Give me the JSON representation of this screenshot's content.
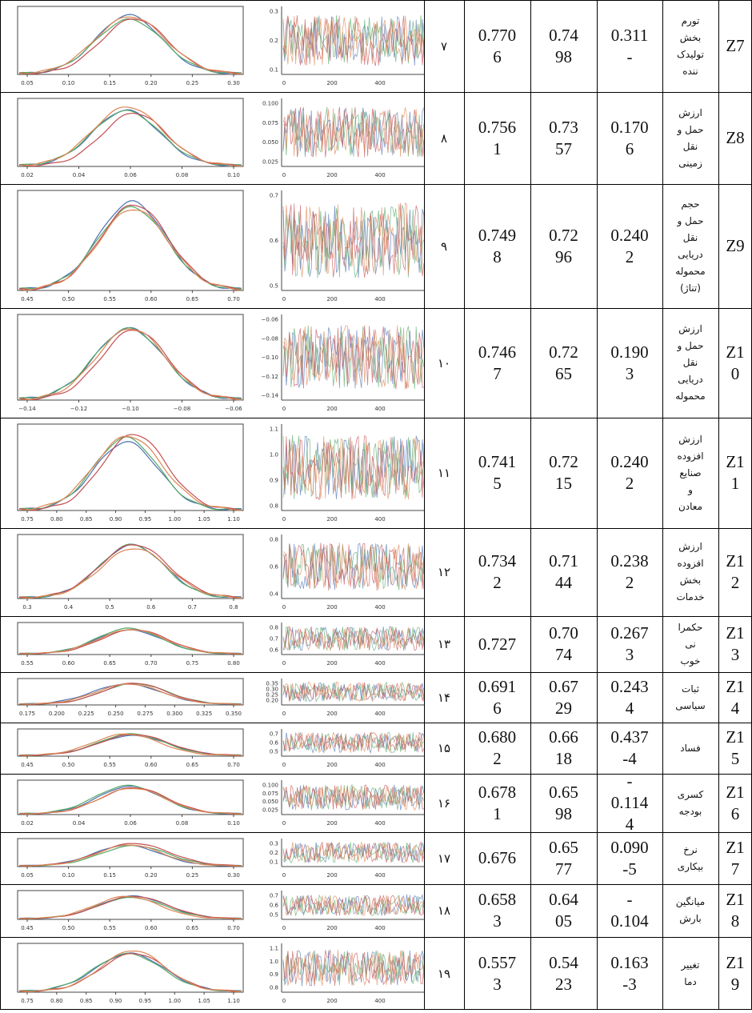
{
  "rows": [
    {
      "z": [
        "Z7"
      ],
      "label": [
        "تورم",
        "بخش",
        "تولیدک",
        "ننده"
      ],
      "c1": [
        "0.311",
        "-"
      ],
      "c2": [
        "0.74",
        "98"
      ],
      "c3": [
        "0.770",
        "6"
      ],
      "idx": "۷",
      "kde_ticks": [
        "0.05",
        "0.10",
        "0.15",
        "0.20",
        "0.25",
        "0.30"
      ],
      "trace_ticks": [
        "0.3",
        "0.2",
        "0.1"
      ],
      "trace_x": [
        "0",
        "200",
        "400",
        "600"
      ]
    },
    {
      "z": [
        "Z8"
      ],
      "label": [
        "ارزش",
        "حمل و",
        "نقل",
        "زمینی"
      ],
      "c1": [
        "0.170",
        "6"
      ],
      "c2": [
        "0.73",
        "57"
      ],
      "c3": [
        "0.756",
        "1"
      ],
      "idx": "۸",
      "kde_ticks": [
        "0.02",
        "0.04",
        "0.06",
        "0.08",
        "0.10"
      ],
      "trace_ticks": [
        "0.100",
        "0.075",
        "0.050",
        "0.025"
      ],
      "trace_x": [
        "0",
        "200",
        "400",
        "600"
      ]
    },
    {
      "z": [
        "Z9"
      ],
      "label": [
        "حجم",
        "حمل و",
        "نقل",
        "دریایی",
        "محموله",
        "(تناژ)"
      ],
      "c1": [
        "0.240",
        "2"
      ],
      "c2": [
        "0.72",
        "96"
      ],
      "c3": [
        "0.749",
        "8"
      ],
      "idx": "۹",
      "kde_ticks": [
        "0.45",
        "0.50",
        "0.55",
        "0.60",
        "0.65",
        "0.70"
      ],
      "trace_ticks": [
        "0.7",
        "0.6",
        "0.5"
      ],
      "trace_x": [
        "0",
        "200",
        "400"
      ]
    },
    {
      "z": [
        "Z1",
        "0"
      ],
      "label": [
        "ارزش",
        "حمل و",
        "نقل",
        "دریایی",
        "محموله"
      ],
      "c1": [
        "0.190",
        "3"
      ],
      "c2": [
        "0.72",
        "65"
      ],
      "c3": [
        "0.746",
        "7"
      ],
      "idx": "۱۰",
      "kde_ticks": [
        "−0.14",
        "−0.12",
        "−0.10",
        "−0.08",
        "−0.06"
      ],
      "trace_ticks": [
        "−0.06",
        "−0.08",
        "−0.10",
        "−0.12",
        "−0.14"
      ],
      "trace_x": [
        "0",
        "200",
        "400"
      ]
    },
    {
      "z": [
        "Z1",
        "1"
      ],
      "label": [
        "ارزش",
        "افزوده",
        "صنایع",
        "و",
        "معادن"
      ],
      "c1": [
        "0.240",
        "2"
      ],
      "c2": [
        "0.72",
        "15"
      ],
      "c3": [
        "0.741",
        "5"
      ],
      "idx": "۱۱",
      "kde_ticks": [
        "0.75",
        "0.80",
        "0.85",
        "0.90",
        "0.95",
        "1.00",
        "1.05",
        "1.10"
      ],
      "trace_ticks": [
        "1.1",
        "1.0",
        "0.9",
        "0.8"
      ],
      "trace_x": [
        "0",
        "200",
        "400",
        "600"
      ]
    },
    {
      "z": [
        "Z1",
        "2"
      ],
      "label": [
        "ارزش",
        "افزوده",
        "بخش",
        "خدمات"
      ],
      "c1": [
        "0.238",
        "2"
      ],
      "c2": [
        "0.71",
        "44"
      ],
      "c3": [
        "0.734",
        "2"
      ],
      "idx": "۱۲",
      "kde_ticks": [
        "0.3",
        "0.4",
        "0.5",
        "0.6",
        "0.7",
        "0.8"
      ],
      "trace_ticks": [
        "0.8",
        "0.6",
        "0.4"
      ],
      "trace_x": [
        "0",
        "200",
        "400"
      ]
    },
    {
      "z": [
        "Z1",
        "3"
      ],
      "label": [
        "حکمرا",
        "نی",
        "خوب"
      ],
      "c1": [
        "0.267",
        "3"
      ],
      "c2": [
        "0.70",
        "74"
      ],
      "c3": [
        "0.727"
      ],
      "idx": "۱۳",
      "kde_ticks": [
        "0.55",
        "0.60",
        "0.65",
        "0.70",
        "0.75",
        "0.80"
      ],
      "trace_ticks": [
        "0.8",
        "0.7",
        "0.6"
      ],
      "trace_x": [
        "0",
        "200",
        "400"
      ]
    },
    {
      "z": [
        "Z1",
        "4"
      ],
      "label": [
        "ثبات",
        "سیاسی"
      ],
      "c1": [
        "0.243",
        "4"
      ],
      "c2": [
        "0.67",
        "29"
      ],
      "c3": [
        "0.691",
        "6"
      ],
      "idx": "۱۴",
      "kde_ticks": [
        "0.175",
        "0.200",
        "0.225",
        "0.250",
        "0.275",
        "0.300",
        "0.325",
        "0.350"
      ],
      "trace_ticks": [
        "0.35",
        "0.30",
        "0.25",
        "0.20"
      ],
      "trace_x": [
        "0",
        "200",
        "400"
      ]
    },
    {
      "z": [
        "Z1",
        "5"
      ],
      "label": [
        "فساد"
      ],
      "c1": [
        "0.437",
        "-4"
      ],
      "c2": [
        "0.66",
        "18"
      ],
      "c3": [
        "0.680",
        "2"
      ],
      "idx": "۱۵",
      "kde_ticks": [
        "0.45",
        "0.50",
        "0.55",
        "0.60",
        "0.65",
        "0.70"
      ],
      "trace_ticks": [
        "0.7",
        "0.6",
        "0.5"
      ],
      "trace_x": [
        "0",
        "200",
        "400"
      ]
    },
    {
      "z": [
        "Z1",
        "6"
      ],
      "label": [
        "کسری",
        "بودجه"
      ],
      "c1": [
        "-",
        "0.114",
        "4"
      ],
      "c2": [
        "0.65",
        "98"
      ],
      "c3": [
        "0.678",
        "1"
      ],
      "idx": "۱۶",
      "kde_ticks": [
        "0.02",
        "0.04",
        "0.06",
        "0.08",
        "0.10"
      ],
      "trace_ticks": [
        "0.100",
        "0.075",
        "0.050",
        "0.025"
      ],
      "trace_x": [
        "0",
        "200",
        "400",
        "600"
      ]
    },
    {
      "z": [
        "Z1",
        "7"
      ],
      "label": [
        "نرخ",
        "بیکاری"
      ],
      "c1": [
        "0.090",
        "-5"
      ],
      "c2": [
        "0.65",
        "77"
      ],
      "c3": [
        "0.676"
      ],
      "idx": "۱۷",
      "kde_ticks": [
        "0.05",
        "0.10",
        "0.15",
        "0.20",
        "0.25",
        "0.30"
      ],
      "trace_ticks": [
        "0.3",
        "0.2",
        "0.1"
      ],
      "trace_x": [
        "0",
        "200",
        "400",
        "600"
      ]
    },
    {
      "z": [
        "Z1",
        "8"
      ],
      "label": [
        "میانگین",
        "بارش"
      ],
      "c1": [
        "-",
        "0.104"
      ],
      "c2": [
        "0.64",
        "05"
      ],
      "c3": [
        "0.658",
        "3"
      ],
      "idx": "۱۸",
      "kde_ticks": [
        "0.45",
        "0.50",
        "0.55",
        "0.60",
        "0.65",
        "0.70"
      ],
      "trace_ticks": [
        "0.7",
        "0.6",
        "0.5"
      ],
      "trace_x": [
        "0",
        "200",
        "400"
      ]
    },
    {
      "z": [
        "Z1",
        "9"
      ],
      "label": [
        "تغییر",
        "دما"
      ],
      "c1": [
        "0.163",
        "-3"
      ],
      "c2": [
        "0.54",
        "23"
      ],
      "c3": [
        "0.557",
        "3"
      ],
      "idx": "۱۹",
      "kde_ticks": [
        "0.75",
        "0.80",
        "0.85",
        "0.90",
        "0.95",
        "1.00",
        "1.05",
        "1.10"
      ],
      "trace_ticks": [
        "1.1",
        "1.0",
        "0.9",
        "0.8"
      ],
      "trace_x": [
        "0",
        "200",
        "400",
        "600"
      ]
    }
  ]
}
